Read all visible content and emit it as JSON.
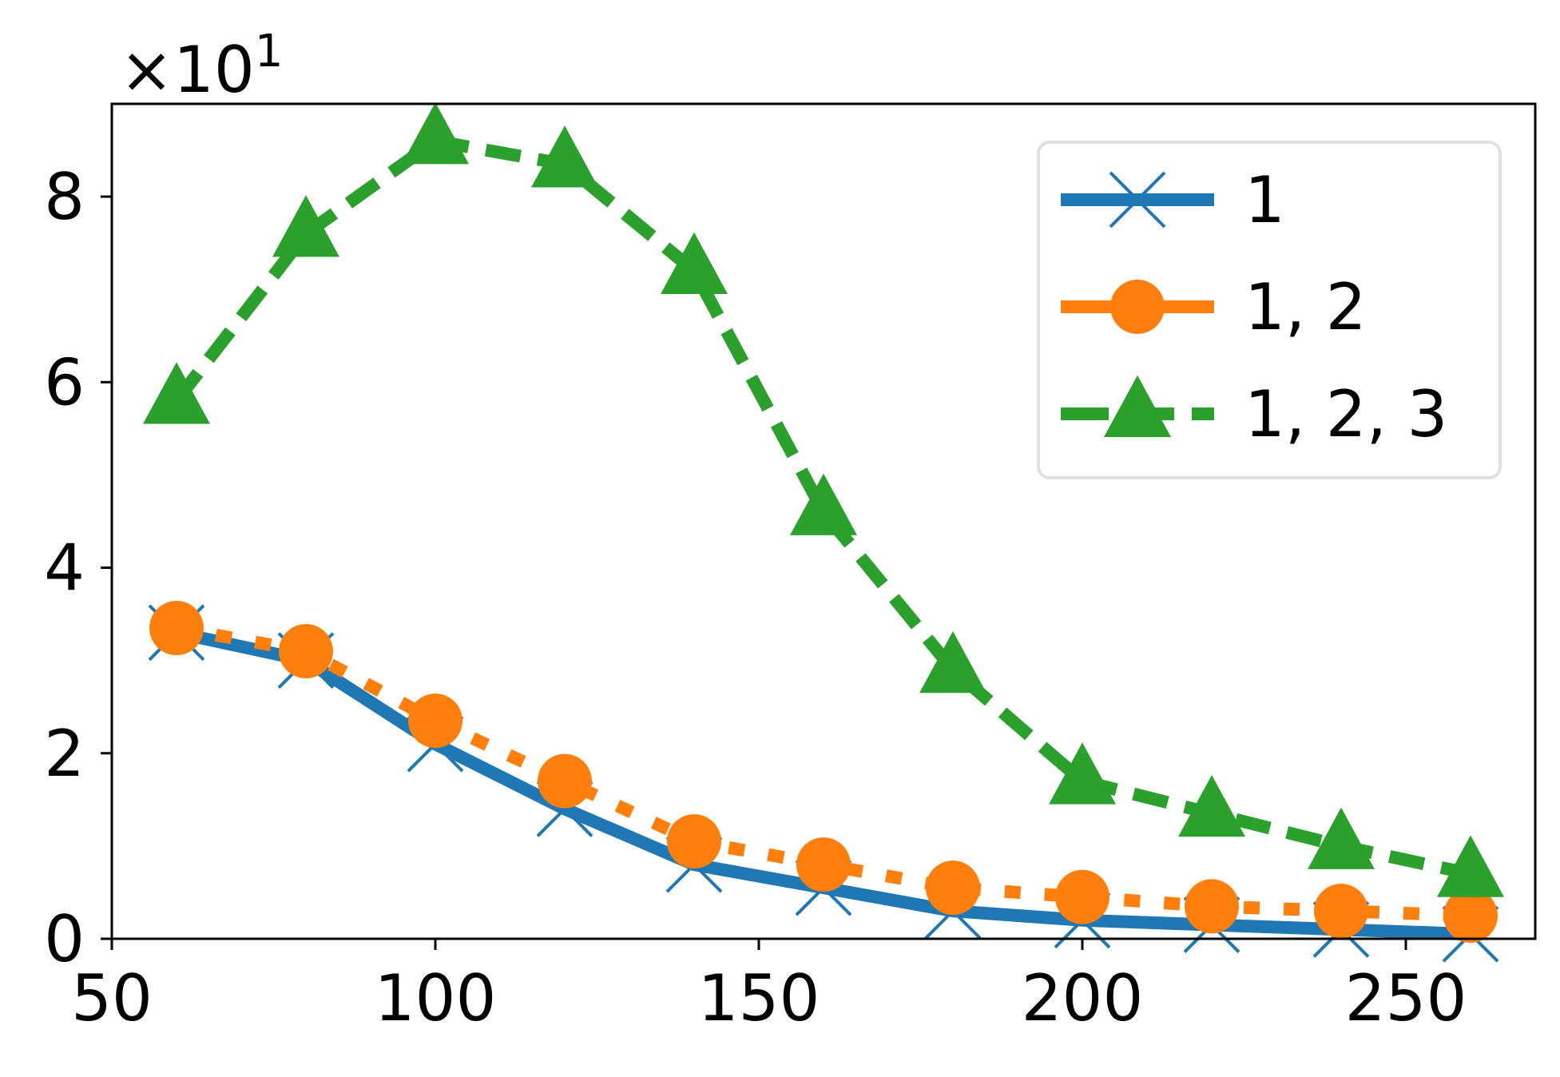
{
  "chart_data": {
    "type": "line",
    "title": "",
    "xlabel": "",
    "ylabel": "",
    "x_ticks": [
      "50",
      "100",
      "150",
      "200",
      "250"
    ],
    "y_ticks": [
      "0",
      "2",
      "4",
      "6",
      "8"
    ],
    "y_multiplier": {
      "base": "×10",
      "exponent": "1"
    },
    "xlim": [
      50,
      270
    ],
    "ylim": [
      0,
      9
    ],
    "grid": false,
    "legend_position": "top-right",
    "x": [
      60,
      80,
      100,
      120,
      140,
      160,
      180,
      200,
      220,
      240,
      260
    ],
    "series": [
      {
        "name": "1",
        "color": "#1f77b4",
        "marker": "x",
        "linestyle": "solid",
        "values": [
          3.3,
          3.0,
          2.1,
          1.4,
          0.8,
          0.55,
          0.3,
          0.2,
          0.15,
          0.1,
          0.05
        ]
      },
      {
        "name": "1, 2",
        "color": "#ff7f0e",
        "marker": "circle",
        "linestyle": "dotted",
        "values": [
          3.35,
          3.1,
          2.35,
          1.7,
          1.05,
          0.8,
          0.55,
          0.45,
          0.35,
          0.3,
          0.25
        ]
      },
      {
        "name": "1, 2, 3",
        "color": "#2ca02c",
        "marker": "triangle",
        "linestyle": "dashed",
        "values": [
          5.8,
          7.6,
          8.6,
          8.35,
          7.2,
          4.6,
          2.9,
          1.7,
          1.35,
          1.0,
          0.7
        ]
      }
    ]
  }
}
